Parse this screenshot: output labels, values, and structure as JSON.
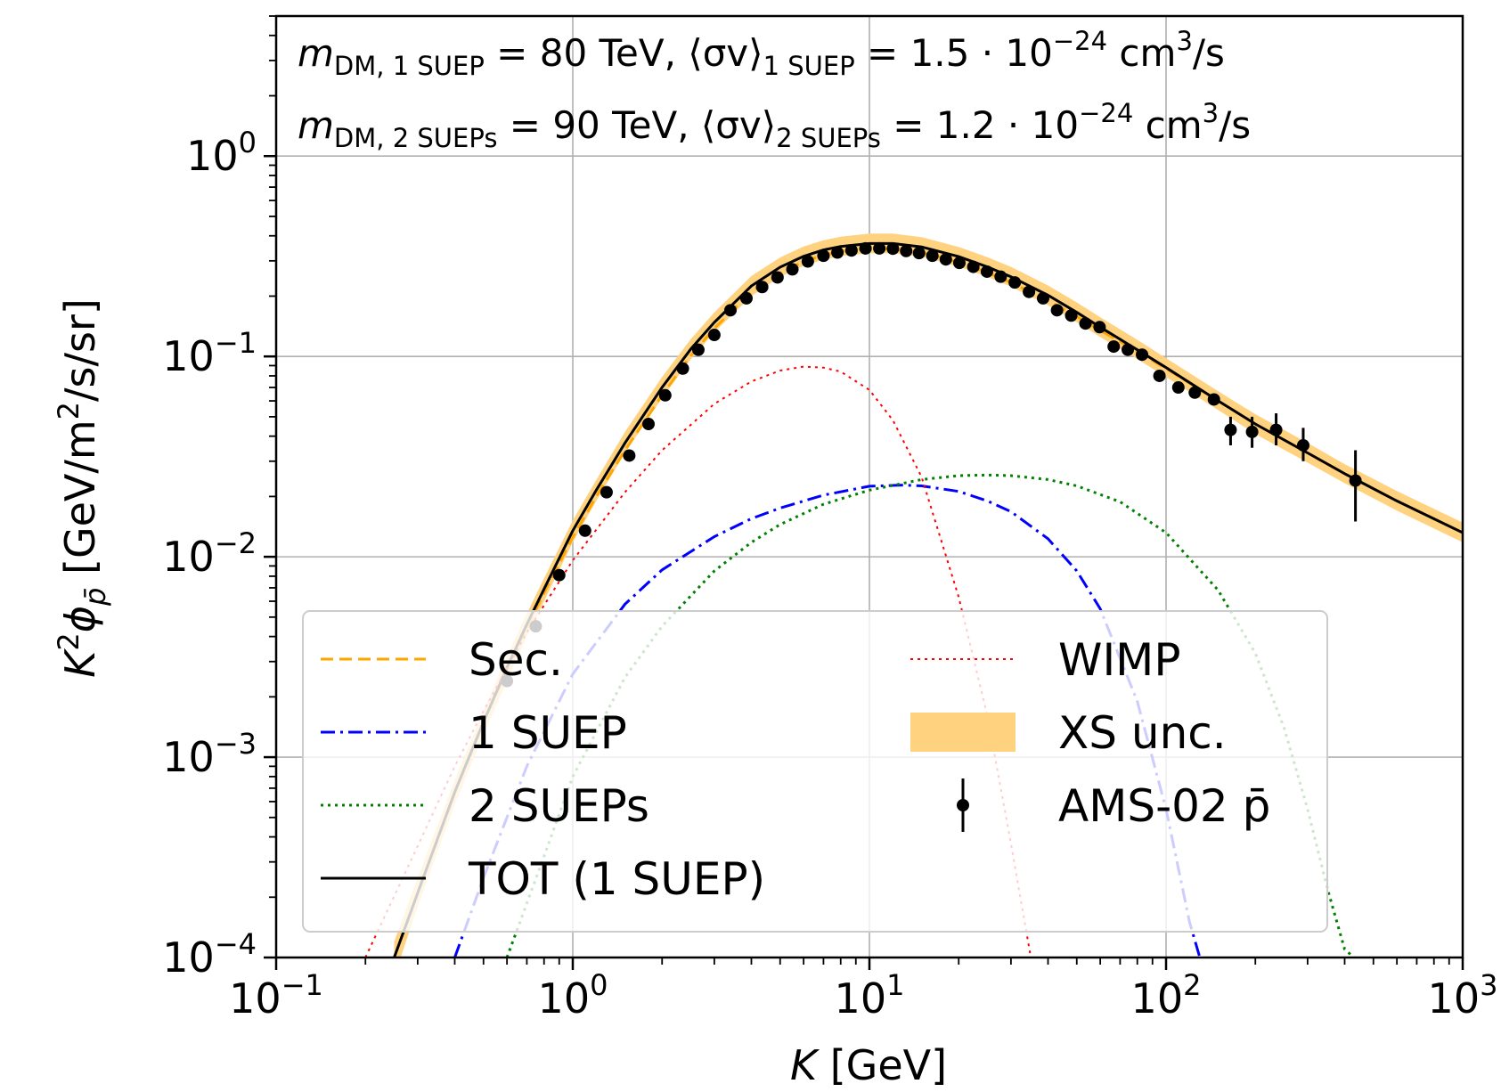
{
  "chart_data": {
    "type": "line",
    "x_scale": "log",
    "y_scale": "log",
    "xlim": [
      0.1,
      1000
    ],
    "ylim": [
      0.0001,
      5
    ],
    "grid": true,
    "x_ticks": [
      {
        "value": 0.1,
        "base": "10",
        "exp": "−1"
      },
      {
        "value": 1,
        "base": "10",
        "exp": "0"
      },
      {
        "value": 10,
        "base": "10",
        "exp": "1"
      },
      {
        "value": 100,
        "base": "10",
        "exp": "2"
      },
      {
        "value": 1000,
        "base": "10",
        "exp": "3"
      }
    ],
    "y_ticks": [
      {
        "value": 0.0001,
        "base": "10",
        "exp": "−4"
      },
      {
        "value": 0.001,
        "base": "10",
        "exp": "−3"
      },
      {
        "value": 0.01,
        "base": "10",
        "exp": "−2"
      },
      {
        "value": 0.1,
        "base": "10",
        "exp": "−1"
      },
      {
        "value": 1,
        "base": "10",
        "exp": "0"
      }
    ],
    "xlabel": {
      "italic": "K",
      "rest": " [GeV]"
    },
    "ylabel": {
      "k": "K",
      "two": "2",
      "phi": "ϕ",
      "sub": "p̄",
      "rest": " [GeV/m",
      "rest_sup": "2",
      "rest_end": "/s/sr]"
    },
    "annotations": [
      {
        "m": "m",
        "m_sub": "DM, 1 SUEP",
        "mass": " = 80 TeV, ⟨σv⟩",
        "sv_sub": "1 SUEP",
        "xs": " = 1.5 · 10",
        "xs_exp": "−24",
        "unit": " cm",
        "unit_exp": "3",
        "unit_end": "/s"
      },
      {
        "m": "m",
        "m_sub": "DM, 2 SUEPs",
        "mass": " = 90 TeV, ⟨σv⟩",
        "sv_sub": "2 SUEPs",
        "xs": " = 1.2 · 10",
        "xs_exp": "−24",
        "unit": " cm",
        "unit_exp": "3",
        "unit_end": "/s"
      }
    ],
    "legend_position": "lower-center",
    "series": [
      {
        "name": "Sec.",
        "color": "#ffa500",
        "style": "dashed",
        "x": [
          0.25,
          0.3,
          0.4,
          0.5,
          0.6,
          0.7,
          0.8,
          1,
          1.2,
          1.5,
          2,
          2.5,
          3,
          4,
          5,
          6,
          7,
          8,
          10,
          12,
          15,
          20,
          25,
          30,
          40,
          50,
          60,
          80,
          100,
          150,
          200,
          300,
          400,
          600,
          1000
        ],
        "y": [
          0.0001,
          0.00021,
          0.00066,
          0.0015,
          0.0027,
          0.0044,
          0.0066,
          0.0125,
          0.02,
          0.034,
          0.064,
          0.101,
          0.138,
          0.21,
          0.261,
          0.298,
          0.32,
          0.335,
          0.345,
          0.344,
          0.33,
          0.295,
          0.262,
          0.234,
          0.19,
          0.158,
          0.135,
          0.106,
          0.087,
          0.06,
          0.046,
          0.033,
          0.026,
          0.019,
          0.0132
        ]
      },
      {
        "name": "1 SUEP",
        "color": "#0000ff",
        "style": "dashdot",
        "x": [
          0.4,
          0.5,
          0.7,
          1,
          1.5,
          2,
          3,
          4,
          5,
          7,
          10,
          13,
          15,
          20,
          25,
          30,
          40,
          50,
          60,
          80,
          100,
          120,
          130
        ],
        "y": [
          0.0001,
          0.00025,
          0.0009,
          0.0026,
          0.0058,
          0.0086,
          0.0126,
          0.0155,
          0.0175,
          0.0203,
          0.0225,
          0.0228,
          0.0226,
          0.0212,
          0.019,
          0.0168,
          0.0123,
          0.0085,
          0.0055,
          0.0019,
          0.00055,
          0.00015,
          0.0001
        ]
      },
      {
        "name": "2 SUEPs",
        "color": "#008000",
        "style": "dotted",
        "x": [
          0.6,
          0.8,
          1,
          1.5,
          2,
          3,
          4,
          5,
          7,
          10,
          15,
          20,
          25,
          30,
          40,
          50,
          70,
          100,
          150,
          200,
          250,
          300,
          350,
          400,
          430
        ],
        "y": [
          0.0001,
          0.00032,
          0.0008,
          0.0025,
          0.0045,
          0.0085,
          0.0118,
          0.0145,
          0.0183,
          0.0215,
          0.0243,
          0.0254,
          0.0256,
          0.0254,
          0.0243,
          0.0226,
          0.0188,
          0.0132,
          0.0068,
          0.0033,
          0.0014,
          0.00055,
          0.00022,
          0.00011,
          0.0001
        ]
      },
      {
        "name": "TOT (1 SUEP)",
        "color": "#000000",
        "style": "solid",
        "x": [
          0.25,
          0.3,
          0.4,
          0.5,
          0.6,
          0.7,
          0.8,
          1,
          1.2,
          1.5,
          2,
          2.5,
          3,
          4,
          5,
          6,
          7,
          8,
          10,
          12,
          15,
          20,
          25,
          30,
          40,
          50,
          60,
          80,
          100,
          150,
          200,
          300,
          400,
          600,
          1000
        ],
        "y": [
          0.0001,
          0.00021,
          0.00067,
          0.0015,
          0.0028,
          0.0046,
          0.0069,
          0.0135,
          0.0215,
          0.037,
          0.07,
          0.109,
          0.148,
          0.225,
          0.279,
          0.316,
          0.34,
          0.354,
          0.366,
          0.366,
          0.352,
          0.315,
          0.28,
          0.25,
          0.202,
          0.166,
          0.14,
          0.108,
          0.088,
          0.06,
          0.046,
          0.033,
          0.026,
          0.019,
          0.0132
        ]
      },
      {
        "name": "WIMP",
        "color": "#ff0000",
        "style": "dotted",
        "x": [
          0.2,
          0.3,
          0.4,
          0.5,
          0.7,
          1,
          1.5,
          2,
          3,
          4,
          5,
          6,
          7,
          8,
          10,
          12,
          15,
          20,
          25,
          30,
          35
        ],
        "y": [
          0.0001,
          0.00036,
          0.0009,
          0.0017,
          0.0042,
          0.0096,
          0.021,
          0.034,
          0.058,
          0.075,
          0.085,
          0.089,
          0.088,
          0.084,
          0.068,
          0.048,
          0.025,
          0.0063,
          0.0016,
          0.00037,
          0.0001
        ]
      }
    ],
    "band": {
      "name": "XS unc.",
      "color": "#ffd280",
      "x": [
        0.25,
        0.3,
        0.4,
        0.5,
        0.6,
        0.7,
        0.8,
        1,
        1.2,
        1.5,
        2,
        2.5,
        3,
        4,
        5,
        6,
        7,
        8,
        10,
        12,
        15,
        20,
        25,
        30,
        40,
        50,
        60,
        80,
        100,
        150,
        200,
        300,
        400,
        600,
        1000
      ],
      "y_low": [
        8e-05,
        0.00018,
        0.00058,
        0.0013,
        0.0024,
        0.004,
        0.006,
        0.0118,
        0.019,
        0.033,
        0.062,
        0.097,
        0.132,
        0.2,
        0.25,
        0.283,
        0.304,
        0.317,
        0.327,
        0.327,
        0.315,
        0.281,
        0.249,
        0.223,
        0.18,
        0.148,
        0.125,
        0.097,
        0.079,
        0.054,
        0.041,
        0.0295,
        0.0233,
        0.017,
        0.0118
      ],
      "y_high": [
        0.00012,
        0.00025,
        0.00077,
        0.0017,
        0.0032,
        0.0052,
        0.0078,
        0.0152,
        0.0242,
        0.042,
        0.079,
        0.122,
        0.166,
        0.252,
        0.312,
        0.354,
        0.38,
        0.396,
        0.41,
        0.41,
        0.394,
        0.352,
        0.313,
        0.28,
        0.226,
        0.186,
        0.157,
        0.121,
        0.098,
        0.067,
        0.0515,
        0.037,
        0.029,
        0.0213,
        0.0148
      ]
    },
    "data_points": {
      "name": "AMS-02 p̄",
      "color": "#000000",
      "x": [
        0.6,
        0.75,
        0.9,
        1.1,
        1.3,
        1.55,
        1.8,
        2.05,
        2.35,
        2.65,
        3.0,
        3.4,
        3.85,
        4.35,
        4.9,
        5.5,
        6.2,
        7.0,
        7.8,
        8.7,
        9.7,
        10.8,
        12.0,
        13.3,
        14.7,
        16.3,
        18.1,
        20.1,
        22.4,
        24.9,
        27.7,
        30.9,
        34.5,
        38.5,
        42.9,
        47.9,
        53.5,
        59.7,
        66.6,
        74.3,
        83.0,
        95.0,
        110,
        125,
        145,
        165,
        195,
        235,
        290,
        435
      ],
      "y": [
        0.0024,
        0.0045,
        0.0081,
        0.0135,
        0.021,
        0.032,
        0.046,
        0.064,
        0.087,
        0.108,
        0.128,
        0.17,
        0.195,
        0.222,
        0.248,
        0.272,
        0.298,
        0.318,
        0.33,
        0.338,
        0.346,
        0.346,
        0.345,
        0.336,
        0.328,
        0.318,
        0.305,
        0.293,
        0.28,
        0.265,
        0.25,
        0.234,
        0.21,
        0.195,
        0.17,
        0.16,
        0.146,
        0.14,
        0.112,
        0.108,
        0.102,
        0.08,
        0.07,
        0.066,
        0.061,
        0.043,
        0.042,
        0.043,
        0.036,
        0.024
      ],
      "err_low": [
        0.0024,
        0.0045,
        0.0081,
        0.0135,
        0.021,
        0.032,
        0.046,
        0.064,
        0.087,
        0.108,
        0.128,
        0.17,
        0.195,
        0.222,
        0.248,
        0.272,
        0.298,
        0.318,
        0.33,
        0.338,
        0.346,
        0.346,
        0.345,
        0.336,
        0.328,
        0.318,
        0.305,
        0.293,
        0.28,
        0.265,
        0.25,
        0.234,
        0.21,
        0.195,
        0.17,
        0.16,
        0.146,
        0.14,
        0.112,
        0.108,
        0.102,
        0.08,
        0.07,
        0.066,
        0.061,
        0.036,
        0.035,
        0.036,
        0.03,
        0.015
      ],
      "err_high": [
        0.0024,
        0.0045,
        0.0081,
        0.0135,
        0.021,
        0.032,
        0.046,
        0.064,
        0.087,
        0.108,
        0.128,
        0.17,
        0.195,
        0.222,
        0.248,
        0.272,
        0.298,
        0.318,
        0.33,
        0.338,
        0.346,
        0.346,
        0.345,
        0.336,
        0.328,
        0.318,
        0.305,
        0.293,
        0.28,
        0.265,
        0.25,
        0.234,
        0.21,
        0.195,
        0.17,
        0.16,
        0.146,
        0.14,
        0.112,
        0.108,
        0.102,
        0.08,
        0.07,
        0.066,
        0.061,
        0.05,
        0.05,
        0.052,
        0.044,
        0.034
      ]
    },
    "legend": [
      {
        "label": "Sec.",
        "kind": "line",
        "color": "#ffa500",
        "style": "dashed",
        "col": 0,
        "row": 0
      },
      {
        "label": "1 SUEP",
        "kind": "line",
        "color": "#0000ff",
        "style": "dashdot",
        "col": 0,
        "row": 1
      },
      {
        "label": "2 SUEPs",
        "kind": "line",
        "color": "#008000",
        "style": "dotted",
        "col": 0,
        "row": 2
      },
      {
        "label": "TOT (1 SUEP)",
        "kind": "line",
        "color": "#000000",
        "style": "solid",
        "col": 0,
        "row": 3
      },
      {
        "label": "WIMP",
        "kind": "line",
        "color": "#ff0000",
        "style": "dotted",
        "col": 1,
        "row": 0
      },
      {
        "label": "XS unc.",
        "kind": "band",
        "color": "#ffd280",
        "col": 1,
        "row": 1
      },
      {
        "label": "AMS-02 p̄",
        "kind": "errorbar",
        "color": "#000000",
        "col": 1,
        "row": 2
      }
    ]
  }
}
